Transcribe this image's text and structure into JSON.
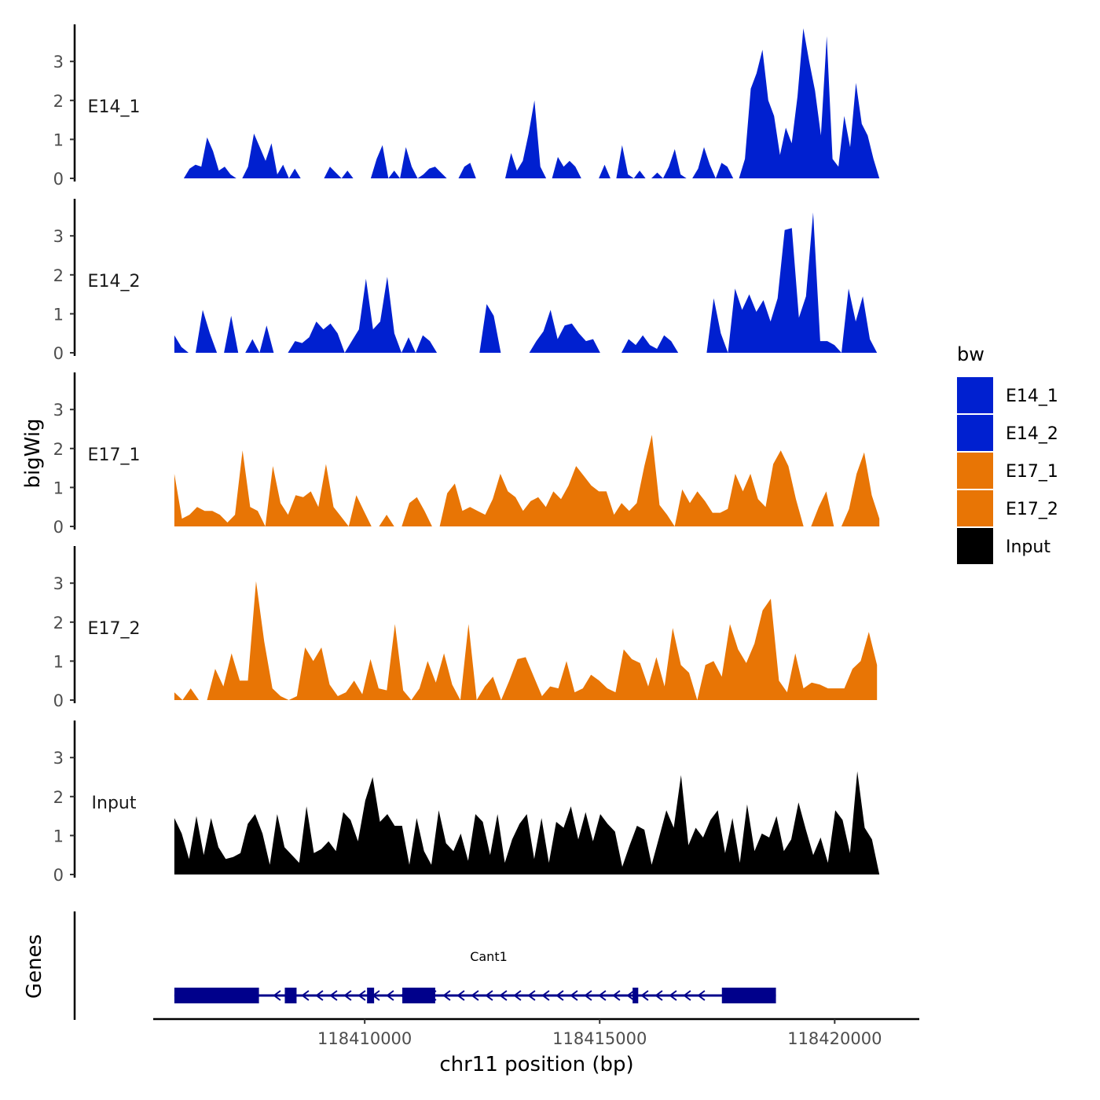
{
  "chart_data": {
    "type": "area",
    "y_axis_label": "bigWig",
    "x_axis_label": "chr11 position (bp)",
    "genes_panel_label": "Genes",
    "x_range": [
      118405500,
      118421800
    ],
    "x_ticks": [
      {
        "value": 118410000,
        "label": "118410000"
      },
      {
        "value": 118415000,
        "label": "118415000"
      },
      {
        "value": 118420000,
        "label": "118420000"
      }
    ],
    "y_range": [
      0,
      3.9
    ],
    "y_ticks": [
      {
        "value": 0,
        "label": "0"
      },
      {
        "value": 1,
        "label": "1"
      },
      {
        "value": 2,
        "label": "2"
      },
      {
        "value": 3,
        "label": "3"
      }
    ],
    "legend": {
      "title": "bw",
      "entries": [
        {
          "label": "E14_1",
          "color": "#0020D0"
        },
        {
          "label": "E14_2",
          "color": "#0020D0"
        },
        {
          "label": "E17_1",
          "color": "#E87505"
        },
        {
          "label": "E17_2",
          "color": "#E87505"
        },
        {
          "label": "Input",
          "color": "#000000"
        }
      ]
    },
    "series": [
      {
        "name": "E14_1",
        "label": "E14_1",
        "color": "#0020D0",
        "x_start": 118406150,
        "x_end": 118420950,
        "values": [
          0,
          0.25,
          0.35,
          0.3,
          1.05,
          0.7,
          0.2,
          0.3,
          0.1,
          0,
          0,
          0.3,
          1.15,
          0.8,
          0.45,
          0.9,
          0.1,
          0.35,
          0,
          0.25,
          0,
          0,
          0,
          0,
          0,
          0.3,
          0.15,
          0,
          0.2,
          0,
          0,
          0,
          0,
          0.5,
          0.85,
          0,
          0.2,
          0,
          0.8,
          0.3,
          0,
          0.1,
          0.25,
          0.3,
          0.15,
          0,
          0,
          0,
          0.3,
          0.4,
          0,
          0,
          0,
          0,
          0,
          0,
          0.65,
          0.2,
          0.45,
          1.15,
          2,
          0.3,
          0,
          0,
          0.55,
          0.3,
          0.45,
          0.3,
          0,
          0,
          0,
          0,
          0.35,
          0,
          0,
          0.85,
          0.1,
          0,
          0.2,
          0,
          0,
          0.15,
          0,
          0.3,
          0.75,
          0.1,
          0,
          0,
          0.25,
          0.8,
          0.35,
          0,
          0.4,
          0.3,
          0,
          0,
          0.5,
          2.3,
          2.7,
          3.3,
          2,
          1.6,
          0.6,
          1.3,
          0.9,
          2.1,
          3.85,
          3,
          2.25,
          1.1,
          3.65,
          0.5,
          0.3,
          1.6,
          0.8,
          2.45,
          1.4,
          1.1,
          0.5,
          0
        ]
      },
      {
        "name": "E14_2",
        "label": "E14_2",
        "color": "#0020D0",
        "x_start": 118405950,
        "x_end": 118420900,
        "values": [
          0.45,
          0.15,
          0,
          0,
          1.1,
          0.5,
          0,
          0,
          0.95,
          0,
          0,
          0.35,
          0,
          0.7,
          0,
          0,
          0,
          0.3,
          0.25,
          0.4,
          0.8,
          0.6,
          0.75,
          0.5,
          0,
          0.3,
          0.6,
          1.9,
          0.6,
          0.8,
          1.95,
          0.5,
          0,
          0.4,
          0,
          0.45,
          0.3,
          0,
          0,
          0,
          0,
          0,
          0,
          0,
          1.25,
          0.95,
          0,
          0,
          0,
          0,
          0,
          0.3,
          0.55,
          1.1,
          0.35,
          0.7,
          0.75,
          0.5,
          0.3,
          0.35,
          0,
          0,
          0,
          0,
          0.35,
          0.2,
          0.45,
          0.2,
          0.1,
          0.45,
          0.3,
          0,
          0,
          0,
          0,
          0,
          1.4,
          0.5,
          0,
          1.65,
          1.1,
          1.5,
          1.05,
          1.35,
          0.8,
          1.4,
          3.15,
          3.2,
          0.9,
          1.45,
          3.6,
          0.3,
          0.3,
          0.2,
          0,
          1.65,
          0.8,
          1.45,
          0.35,
          0
        ]
      },
      {
        "name": "E17_1",
        "label": "E17_1",
        "color": "#E87505",
        "x_start": 118405950,
        "x_end": 118420950,
        "values": [
          1.35,
          0.2,
          0.3,
          0.5,
          0.4,
          0.4,
          0.3,
          0.1,
          0.3,
          1.95,
          0.5,
          0.4,
          0,
          1.55,
          0.6,
          0.3,
          0.8,
          0.75,
          0.9,
          0.5,
          1.6,
          0.5,
          0.25,
          0,
          0.8,
          0.4,
          0,
          0,
          0.3,
          0,
          0,
          0.6,
          0.75,
          0.4,
          0,
          0,
          0.85,
          1.1,
          0.4,
          0.5,
          0.4,
          0.3,
          0.7,
          1.35,
          0.9,
          0.75,
          0.4,
          0.65,
          0.75,
          0.5,
          0.9,
          0.7,
          1.05,
          1.55,
          1.3,
          1.05,
          0.9,
          0.9,
          0.3,
          0.6,
          0.4,
          0.6,
          1.55,
          2.35,
          0.55,
          0.3,
          0,
          0.95,
          0.6,
          0.9,
          0.65,
          0.35,
          0.35,
          0.45,
          1.35,
          0.9,
          1.35,
          0.7,
          0.5,
          1.6,
          1.95,
          1.55,
          0.7,
          0,
          0,
          0.5,
          0.9,
          0,
          0,
          0.45,
          1.35,
          1.9,
          0.8,
          0.2
        ]
      },
      {
        "name": "E17_2",
        "label": "E17_2",
        "color": "#E87505",
        "x_start": 118405950,
        "x_end": 118420900,
        "values": [
          0.2,
          0,
          0.3,
          0,
          0,
          0.8,
          0.35,
          1.2,
          0.5,
          0.5,
          3.05,
          1.5,
          0.3,
          0.1,
          0,
          0.1,
          1.35,
          1,
          1.35,
          0.4,
          0.1,
          0.2,
          0.5,
          0.15,
          1.05,
          0.3,
          0.25,
          1.95,
          0.25,
          0,
          0.3,
          1,
          0.45,
          1.2,
          0.4,
          0,
          1.95,
          0,
          0.35,
          0.6,
          0,
          0.5,
          1.05,
          1.1,
          0.6,
          0.1,
          0.35,
          0.3,
          1,
          0.2,
          0.3,
          0.65,
          0.5,
          0.3,
          0.2,
          1.3,
          1.05,
          0.95,
          0.35,
          1.1,
          0.35,
          1.85,
          0.9,
          0.7,
          0,
          0.9,
          1,
          0.6,
          1.95,
          1.3,
          0.95,
          1.45,
          2.3,
          2.6,
          0.5,
          0.2,
          1.2,
          0.3,
          0.45,
          0.4,
          0.3,
          0.3,
          0.3,
          0.8,
          1,
          1.75,
          0.9
        ]
      },
      {
        "name": "Input",
        "label": "Input",
        "color": "#000000",
        "x_start": 118405950,
        "x_end": 118420950,
        "values": [
          1.45,
          1.05,
          0.4,
          1.5,
          0.5,
          1.45,
          0.7,
          0.4,
          0.45,
          0.55,
          1.3,
          1.55,
          1.05,
          0.25,
          1.55,
          0.7,
          0.5,
          0.3,
          1.75,
          0.55,
          0.65,
          0.85,
          0.6,
          1.6,
          1.4,
          0.85,
          1.9,
          2.5,
          1.35,
          1.55,
          1.25,
          1.25,
          0.25,
          1.45,
          0.6,
          0.25,
          1.65,
          0.8,
          0.6,
          1.05,
          0.35,
          1.55,
          1.35,
          0.5,
          1.55,
          0.3,
          0.9,
          1.3,
          1.55,
          0.4,
          1.45,
          0.3,
          1.35,
          1.2,
          1.75,
          0.9,
          1.6,
          0.85,
          1.55,
          1.3,
          1.1,
          0.2,
          0.75,
          1.25,
          1.15,
          0.25,
          0.95,
          1.65,
          1.2,
          2.55,
          0.75,
          1.2,
          0.95,
          1.4,
          1.65,
          0.55,
          1.45,
          0.3,
          1.8,
          0.6,
          1.05,
          0.95,
          1.5,
          0.6,
          0.9,
          1.85,
          1.15,
          0.5,
          0.95,
          0.3,
          1.65,
          1.4,
          0.55,
          2.65,
          1.2,
          0.9,
          0
        ]
      }
    ],
    "gene_track": {
      "gene_name": "Cant1",
      "color": "#00008B",
      "strand": "-",
      "x_start": 118405950,
      "x_end": 118418750,
      "exons": [
        {
          "start": 118405950,
          "end": 118407750
        },
        {
          "start": 118408300,
          "end": 118408550
        },
        {
          "start": 118410050,
          "end": 118410200
        },
        {
          "start": 118410800,
          "end": 118411500
        },
        {
          "start": 118415700,
          "end": 118415820
        },
        {
          "start": 118417600,
          "end": 118418750
        }
      ]
    }
  }
}
